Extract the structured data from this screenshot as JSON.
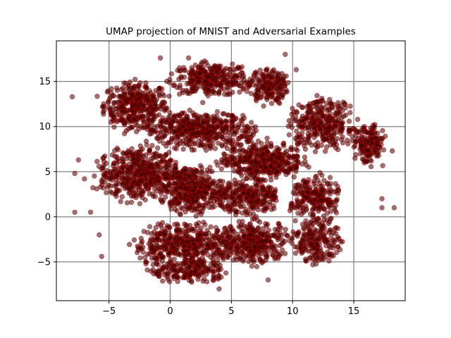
{
  "chart_data": {
    "type": "scatter",
    "title": "UMAP projection of MNIST and Adversarial Examples",
    "xlabel": "",
    "ylabel": "",
    "xlim": [
      -9.3,
      19.2
    ],
    "ylim": [
      -9.3,
      19.5
    ],
    "xticks": [
      -5,
      0,
      5,
      10,
      15
    ],
    "yticks": [
      -5,
      0,
      5,
      10,
      15
    ],
    "xtick_labels": [
      "−5",
      "0",
      "5",
      "10",
      "15"
    ],
    "ytick_labels": [
      "−5",
      "0",
      "5",
      "10",
      "15"
    ],
    "grid": true,
    "grid_color": "#808080",
    "point_fill": "#3a0000",
    "point_edge": "#cc0000",
    "point_alpha": 0.55,
    "clusters": [
      {
        "cx": -2.8,
        "cy": 12.3,
        "rx": 2.6,
        "ry": 2.6,
        "n": 360
      },
      {
        "cx": 3.3,
        "cy": 15.2,
        "rx": 3.2,
        "ry": 1.8,
        "n": 300
      },
      {
        "cx": 8.0,
        "cy": 14.5,
        "rx": 1.6,
        "ry": 2.0,
        "n": 180
      },
      {
        "cx": 2.5,
        "cy": 9.6,
        "rx": 4.5,
        "ry": 2.0,
        "n": 460
      },
      {
        "cx": -2.6,
        "cy": 4.8,
        "rx": 3.2,
        "ry": 3.0,
        "n": 480
      },
      {
        "cx": 1.8,
        "cy": 3.0,
        "rx": 2.6,
        "ry": 2.6,
        "n": 380
      },
      {
        "cx": 7.5,
        "cy": 6.2,
        "rx": 3.3,
        "ry": 2.0,
        "n": 400
      },
      {
        "cx": 6.5,
        "cy": 2.2,
        "rx": 2.4,
        "ry": 2.0,
        "n": 260
      },
      {
        "cx": 12.4,
        "cy": 10.2,
        "rx": 2.8,
        "ry": 2.8,
        "n": 320
      },
      {
        "cx": 16.2,
        "cy": 8.0,
        "rx": 1.3,
        "ry": 2.2,
        "n": 160
      },
      {
        "cx": 11.8,
        "cy": 2.0,
        "rx": 2.0,
        "ry": 2.6,
        "n": 220
      },
      {
        "cx": 12.0,
        "cy": -2.8,
        "rx": 2.0,
        "ry": 2.3,
        "n": 200
      },
      {
        "cx": 1.2,
        "cy": -3.2,
        "rx": 4.2,
        "ry": 2.4,
        "n": 480
      },
      {
        "cx": 7.0,
        "cy": -2.8,
        "rx": 2.8,
        "ry": 2.3,
        "n": 320
      },
      {
        "cx": 1.5,
        "cy": -6.2,
        "rx": 3.2,
        "ry": 1.0,
        "n": 150
      }
    ],
    "outliers": [
      [
        -7.8,
        0.5
      ],
      [
        -6.5,
        0.5
      ],
      [
        -5.8,
        -2.0
      ],
      [
        -5.6,
        -4.4
      ],
      [
        -7.8,
        4.8
      ],
      [
        -7.0,
        4.2
      ],
      [
        -7.5,
        6.3
      ],
      [
        -6.0,
        3.1
      ],
      [
        -8.0,
        13.3
      ],
      [
        17.3,
        1.0
      ],
      [
        17.3,
        2.0
      ],
      [
        18.3,
        1.0
      ],
      [
        10.3,
        16.3
      ],
      [
        9.4,
        18.0
      ],
      [
        -0.8,
        17.6
      ],
      [
        1.5,
        17.6
      ],
      [
        8.0,
        -7.0
      ],
      [
        4.0,
        -8.0
      ]
    ]
  }
}
